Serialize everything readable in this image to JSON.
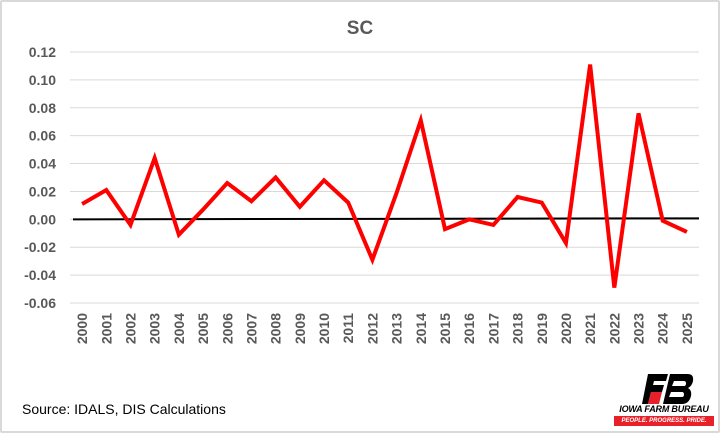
{
  "chart_data": {
    "type": "line",
    "title": "SC",
    "xlabel": "",
    "ylabel": "",
    "categories": [
      "2000",
      "2001",
      "2002",
      "2003",
      "2004",
      "2005",
      "2006",
      "2007",
      "2008",
      "2009",
      "2010",
      "2011",
      "2012",
      "2013",
      "2014",
      "2015",
      "2016",
      "2017",
      "2018",
      "2019",
      "2020",
      "2021",
      "2022",
      "2023",
      "2024",
      "2025"
    ],
    "series": [
      {
        "name": "SC",
        "color": "#ff0000",
        "values": [
          0.011,
          0.021,
          -0.004,
          0.044,
          -0.011,
          0.007,
          0.026,
          0.013,
          0.03,
          0.009,
          0.028,
          0.012,
          -0.029,
          0.019,
          0.071,
          -0.007,
          0.0,
          -0.004,
          0.016,
          0.012,
          -0.017,
          0.111,
          -0.049,
          0.076,
          -0.001,
          -0.009
        ]
      }
    ],
    "ylim": [
      -0.06,
      0.12
    ],
    "yticks": [
      "0.12",
      "0.10",
      "0.08",
      "0.06",
      "0.04",
      "0.02",
      "0.00",
      "-0.02",
      "-0.04",
      "-0.06"
    ],
    "ytick_values": [
      0.12,
      0.1,
      0.08,
      0.06,
      0.04,
      0.02,
      0.0,
      -0.02,
      -0.04,
      -0.06
    ],
    "grid": true,
    "legend": "none",
    "reference_line": {
      "value": 0,
      "color": "#000000"
    }
  },
  "source": "Source: IDALS, DIS Calculations",
  "logo": {
    "name": "IOWA FARM BUREAU",
    "tagline": "PEOPLE. PROGRESS. PRIDE."
  }
}
